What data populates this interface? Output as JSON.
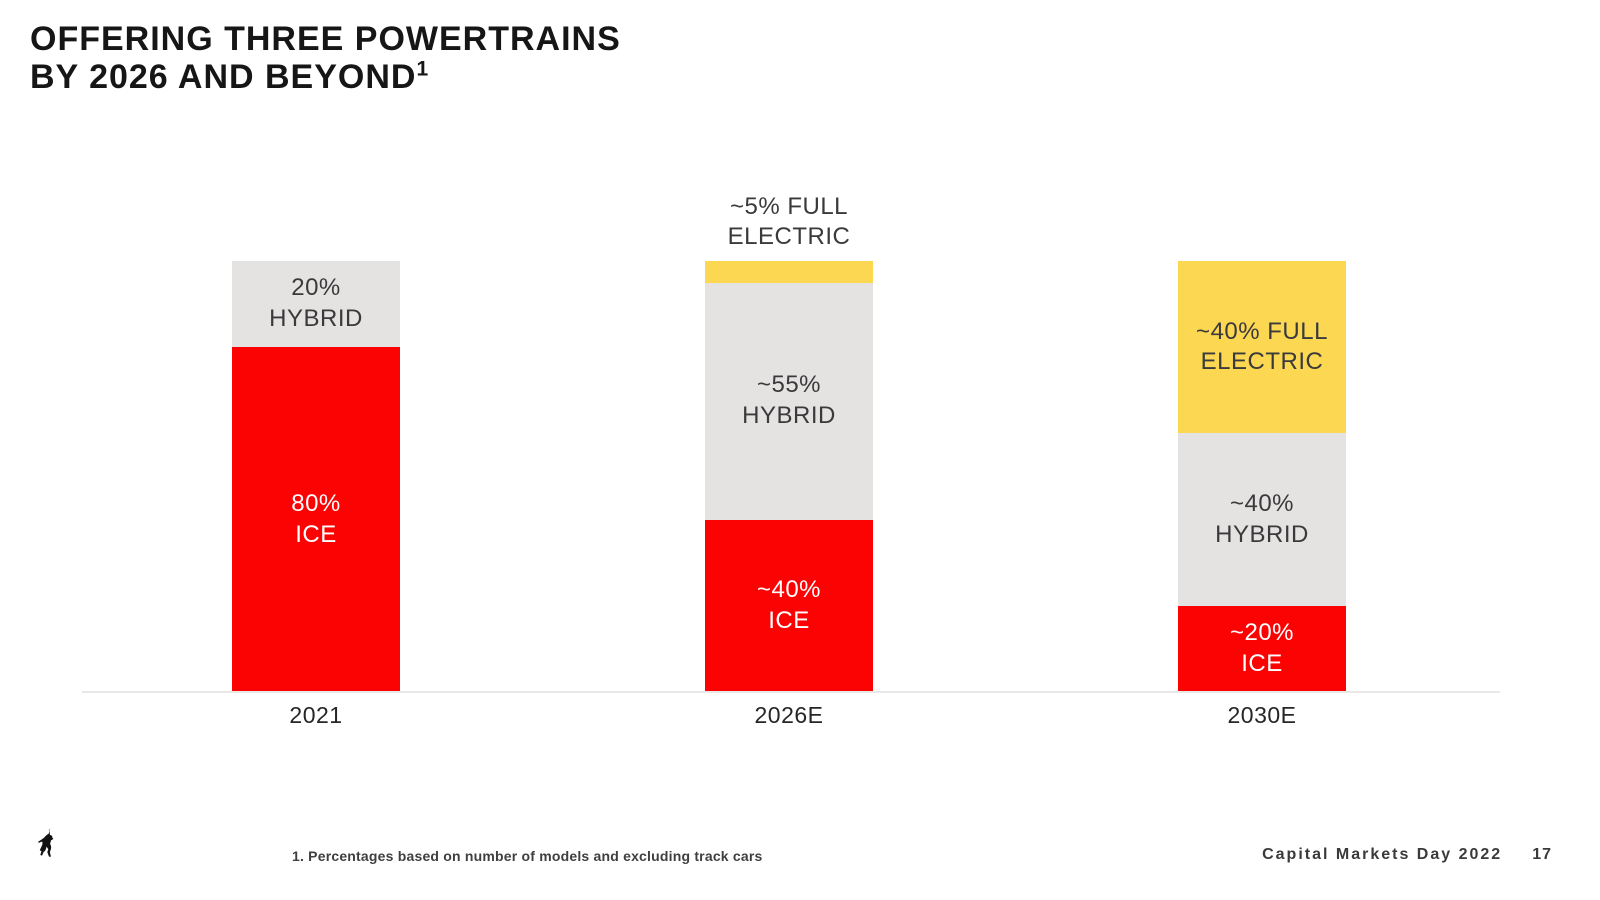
{
  "slide": {
    "title_line1": "OFFERING THREE POWERTRAINS",
    "title_line2": "BY 2026 AND BEYOND",
    "title_superscript": "1",
    "footnote": "1. Percentages based on number of models and excluding track cars",
    "footer_right": "Capital Markets Day 2022",
    "page_number": "17",
    "logo_name": "ferrari-prancing-horse-logo"
  },
  "colors": {
    "ice_red": "#FB0303",
    "hybrid_gray": "#E4E3E1",
    "full_electric_yellow": "#FCD751",
    "label_dark": "#3A3A3C",
    "label_light": "#FFFFFF",
    "title_dark": "#161616",
    "baseline_gray": "#E8E8E6"
  },
  "chart_data": {
    "type": "bar",
    "stacked": true,
    "percent_of_total": true,
    "title": "OFFERING THREE POWERTRAINS BY 2026 AND BEYOND",
    "xlabel": "",
    "ylabel": "",
    "ylim": [
      0,
      100
    ],
    "grid": false,
    "legend": "none",
    "categories": [
      "2021",
      "2026E",
      "2030E"
    ],
    "series": [
      {
        "name": "ICE",
        "values": [
          80,
          40,
          20
        ]
      },
      {
        "name": "HYBRID",
        "values": [
          20,
          55,
          40
        ]
      },
      {
        "name": "FULL ELECTRIC",
        "values": [
          0,
          5,
          40
        ]
      }
    ],
    "series_styles": {
      "ICE": {
        "color": "#FB0303",
        "label_color": "#FFFFFF"
      },
      "HYBRID": {
        "color": "#E4E3E1",
        "label_color": "#3A3A3C"
      },
      "FULL ELECTRIC": {
        "color": "#FCD751",
        "label_color": "#3A3A3C"
      }
    },
    "bars": [
      {
        "category": "2021",
        "segments": [
          {
            "series": "ICE",
            "value": 80,
            "label_lines": [
              "80%",
              "ICE"
            ],
            "label_pos": "inside"
          },
          {
            "series": "HYBRID",
            "value": 20,
            "label_lines": [
              "20%",
              "HYBRID"
            ],
            "label_pos": "inside"
          }
        ]
      },
      {
        "category": "2026E",
        "segments": [
          {
            "series": "ICE",
            "value": 40,
            "label_lines": [
              "~40%",
              "ICE"
            ],
            "label_pos": "inside"
          },
          {
            "series": "HYBRID",
            "value": 55,
            "label_lines": [
              "~55%",
              "HYBRID"
            ],
            "label_pos": "inside"
          },
          {
            "series": "FULL ELECTRIC",
            "value": 5,
            "label_lines": [
              "~5% FULL",
              "ELECTRIC"
            ],
            "label_pos": "above"
          }
        ]
      },
      {
        "category": "2030E",
        "segments": [
          {
            "series": "ICE",
            "value": 20,
            "label_lines": [
              "~20%",
              "ICE"
            ],
            "label_pos": "inside"
          },
          {
            "series": "HYBRID",
            "value": 40,
            "label_lines": [
              "~40%",
              "HYBRID"
            ],
            "label_pos": "inside"
          },
          {
            "series": "FULL ELECTRIC",
            "value": 40,
            "label_lines": [
              "~40% FULL",
              "ELECTRIC"
            ],
            "label_pos": "inside"
          }
        ]
      }
    ]
  }
}
